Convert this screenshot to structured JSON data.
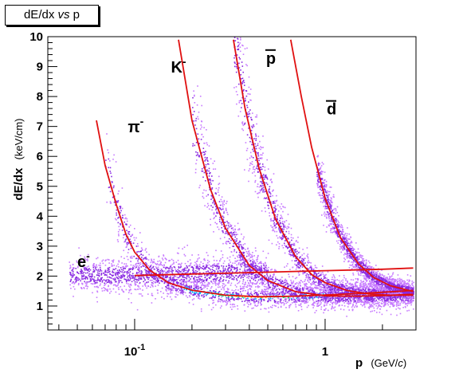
{
  "chart_data": {
    "type": "scatter",
    "title_parts": [
      "dE/dx",
      "vs",
      "p"
    ],
    "xlabel_main": "p",
    "xlabel_unit_open": "(GeV/",
    "xlabel_unit_italic": "c",
    "xlabel_unit_close": ")",
    "ylabel_main": "dE/dx",
    "ylabel_unit": "(keV/cm)",
    "x_scale": "log",
    "xlim": [
      0.035,
      3.0
    ],
    "ylim": [
      0.2,
      10
    ],
    "x_ticks": [
      {
        "value": 0.1,
        "label_base": "10",
        "label_exp": "-1"
      },
      {
        "value": 1,
        "label_base": "1",
        "label_exp": ""
      }
    ],
    "y_ticks": [
      {
        "value": 1,
        "label": "1"
      },
      {
        "value": 2,
        "label": "2"
      },
      {
        "value": 3,
        "label": "3"
      },
      {
        "value": 4,
        "label": "4"
      },
      {
        "value": 5,
        "label": "5"
      },
      {
        "value": 6,
        "label": "6"
      },
      {
        "value": 7,
        "label": "7"
      },
      {
        "value": 8,
        "label": "8"
      },
      {
        "value": 9,
        "label": "9"
      },
      {
        "value": 10,
        "label": "10"
      }
    ],
    "annotations": [
      {
        "base": "e",
        "sup": "-",
        "overline": false,
        "x": 0.05,
        "y": 2.3
      },
      {
        "base": "π",
        "sup": "-",
        "overline": false,
        "x": 0.092,
        "y": 6.8
      },
      {
        "base": "K",
        "sup": "-",
        "overline": false,
        "x": 0.155,
        "y": 8.8
      },
      {
        "base": "p",
        "sup": "",
        "overline": true,
        "x": 0.49,
        "y": 9.1
      },
      {
        "base": "d",
        "sup": "",
        "overline": true,
        "x": 1.02,
        "y": 7.4
      }
    ],
    "curves": [
      {
        "name": "e-",
        "color": "#e01010",
        "x": [
          0.1,
          0.2,
          0.5,
          1.0,
          2.0,
          2.9
        ],
        "y": [
          2.02,
          2.07,
          2.13,
          2.18,
          2.23,
          2.27
        ]
      },
      {
        "name": "π-",
        "color": "#e01010",
        "x": [
          0.063,
          0.07,
          0.08,
          0.09,
          0.1,
          0.12,
          0.15,
          0.2,
          0.3,
          0.45,
          0.7,
          1.0,
          1.5,
          2.0,
          2.9
        ],
        "y": [
          7.2,
          5.7,
          4.4,
          3.4,
          2.8,
          2.2,
          1.78,
          1.53,
          1.36,
          1.31,
          1.33,
          1.37,
          1.42,
          1.46,
          1.52
        ]
      },
      {
        "name": "K-",
        "color": "#e01010",
        "x": [
          0.17,
          0.2,
          0.25,
          0.3,
          0.4,
          0.5,
          0.7,
          1.0,
          1.5,
          2.0,
          2.9
        ],
        "y": [
          9.9,
          7.2,
          4.9,
          3.6,
          2.35,
          1.85,
          1.48,
          1.34,
          1.33,
          1.35,
          1.39
        ]
      },
      {
        "name": "anti-p",
        "color": "#e01010",
        "x": [
          0.33,
          0.38,
          0.45,
          0.55,
          0.7,
          0.85,
          1.0,
          1.3,
          1.7,
          2.2,
          2.9
        ],
        "y": [
          9.9,
          7.6,
          5.6,
          3.9,
          2.65,
          2.05,
          1.78,
          1.52,
          1.4,
          1.36,
          1.36
        ]
      },
      {
        "name": "anti-d",
        "color": "#e01010",
        "x": [
          0.66,
          0.75,
          0.85,
          1.0,
          1.2,
          1.5,
          1.8,
          2.2,
          2.9
        ],
        "y": [
          9.9,
          8.0,
          6.3,
          4.6,
          3.3,
          2.4,
          1.95,
          1.68,
          1.48
        ]
      }
    ],
    "bands": [
      {
        "name": "e-",
        "x": [
          0.045,
          0.065,
          0.1,
          0.2,
          0.5
        ],
        "y": [
          2.05,
          2.05,
          2.05,
          2.1,
          2.15
        ],
        "width": [
          0.25,
          0.3,
          0.3,
          0.3,
          0.3
        ]
      },
      {
        "name": "π-",
        "x": [
          0.07,
          0.08,
          0.09,
          0.1,
          0.12,
          0.15,
          0.2,
          0.3,
          0.45,
          0.7,
          1.0,
          1.5,
          2.0,
          2.9
        ],
        "y": [
          5.7,
          4.4,
          3.4,
          2.8,
          2.2,
          1.78,
          1.53,
          1.36,
          1.31,
          1.33,
          1.37,
          1.42,
          1.46,
          1.52
        ],
        "width": [
          0.7,
          0.55,
          0.4,
          0.35,
          0.3,
          0.22,
          0.2,
          0.18,
          0.18,
          0.2,
          0.2,
          0.2,
          0.2,
          0.2
        ]
      },
      {
        "name": "K-",
        "x": [
          0.2,
          0.25,
          0.3,
          0.4,
          0.5,
          0.7,
          1.0,
          1.5,
          2.0,
          2.9
        ],
        "y": [
          7.2,
          4.9,
          3.6,
          2.35,
          1.85,
          1.48,
          1.34,
          1.33,
          1.35,
          1.39
        ],
        "width": [
          0.9,
          0.6,
          0.4,
          0.3,
          0.25,
          0.2,
          0.2,
          0.2,
          0.2,
          0.2
        ]
      },
      {
        "name": "anti-p",
        "x": [
          0.33,
          0.38,
          0.45,
          0.55,
          0.7,
          0.85,
          1.0,
          1.3,
          1.7,
          2.2,
          2.9
        ],
        "y": [
          9.9,
          7.6,
          5.6,
          3.9,
          2.65,
          2.05,
          1.78,
          1.52,
          1.4,
          1.36,
          1.36
        ],
        "width": [
          1.0,
          0.9,
          0.6,
          0.4,
          0.3,
          0.25,
          0.2,
          0.2,
          0.2,
          0.2,
          0.2
        ]
      },
      {
        "name": "anti-d",
        "x": [
          0.9,
          1.0,
          1.2,
          1.5,
          1.8,
          2.2,
          2.9
        ],
        "y": [
          5.6,
          4.6,
          3.3,
          2.4,
          1.95,
          1.68,
          1.48
        ],
        "width": [
          0.4,
          0.35,
          0.25,
          0.2,
          0.18,
          0.15,
          0.15
        ]
      }
    ],
    "colors": {
      "curve": "#e01010",
      "density_low": "#c77bff",
      "density_mid": "#8a2be2",
      "density_high_1": "#00b4ff",
      "density_high_2": "#00e070",
      "density_peak": "#ffd000"
    },
    "grid": false
  }
}
